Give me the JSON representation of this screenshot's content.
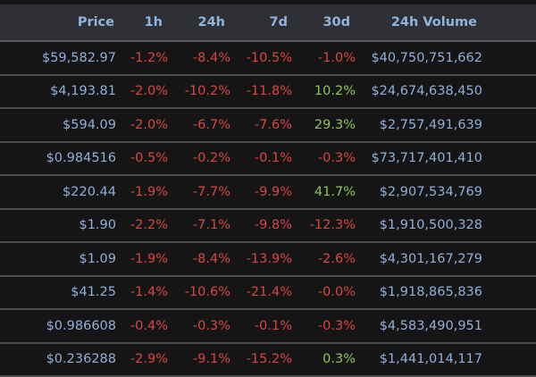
{
  "table": {
    "headers": {
      "price": "Price",
      "h1": "1h",
      "h24": "24h",
      "d7": "7d",
      "d30": "30d",
      "volume": "24h Volume"
    },
    "colors": {
      "header_bg": "#2e3035",
      "header_text": "#8fb4de",
      "value_text": "#8fb0dc",
      "negative": "#d9463f",
      "positive": "#8cc751"
    },
    "rows": [
      {
        "price": "$59,582.97",
        "h1": "-1.2%",
        "h24": "-8.4%",
        "d7": "-10.5%",
        "d30": "-1.0%",
        "volume": "$40,750,751,662"
      },
      {
        "price": "$4,193.81",
        "h1": "-2.0%",
        "h24": "-10.2%",
        "d7": "-11.8%",
        "d30": "10.2%",
        "volume": "$24,674,638,450"
      },
      {
        "price": "$594.09",
        "h1": "-2.0%",
        "h24": "-6.7%",
        "d7": "-7.6%",
        "d30": "29.3%",
        "volume": "$2,757,491,639"
      },
      {
        "price": "$0.984516",
        "h1": "-0.5%",
        "h24": "-0.2%",
        "d7": "-0.1%",
        "d30": "-0.3%",
        "volume": "$73,717,401,410"
      },
      {
        "price": "$220.44",
        "h1": "-1.9%",
        "h24": "-7.7%",
        "d7": "-9.9%",
        "d30": "41.7%",
        "volume": "$2,907,534,769"
      },
      {
        "price": "$1.90",
        "h1": "-2.2%",
        "h24": "-7.1%",
        "d7": "-9.8%",
        "d30": "-12.3%",
        "volume": "$1,910,500,328"
      },
      {
        "price": "$1.09",
        "h1": "-1.9%",
        "h24": "-8.4%",
        "d7": "-13.9%",
        "d30": "-2.6%",
        "volume": "$4,301,167,279"
      },
      {
        "price": "$41.25",
        "h1": "-1.4%",
        "h24": "-10.6%",
        "d7": "-21.4%",
        "d30": "-0.0%",
        "volume": "$1,918,865,836"
      },
      {
        "price": "$0.986608",
        "h1": "-0.4%",
        "h24": "-0.3%",
        "d7": "-0.1%",
        "d30": "-0.3%",
        "volume": "$4,583,490,951"
      },
      {
        "price": "$0.236288",
        "h1": "-2.9%",
        "h24": "-9.1%",
        "d7": "-15.2%",
        "d30": "0.3%",
        "volume": "$1,441,014,117"
      }
    ]
  }
}
